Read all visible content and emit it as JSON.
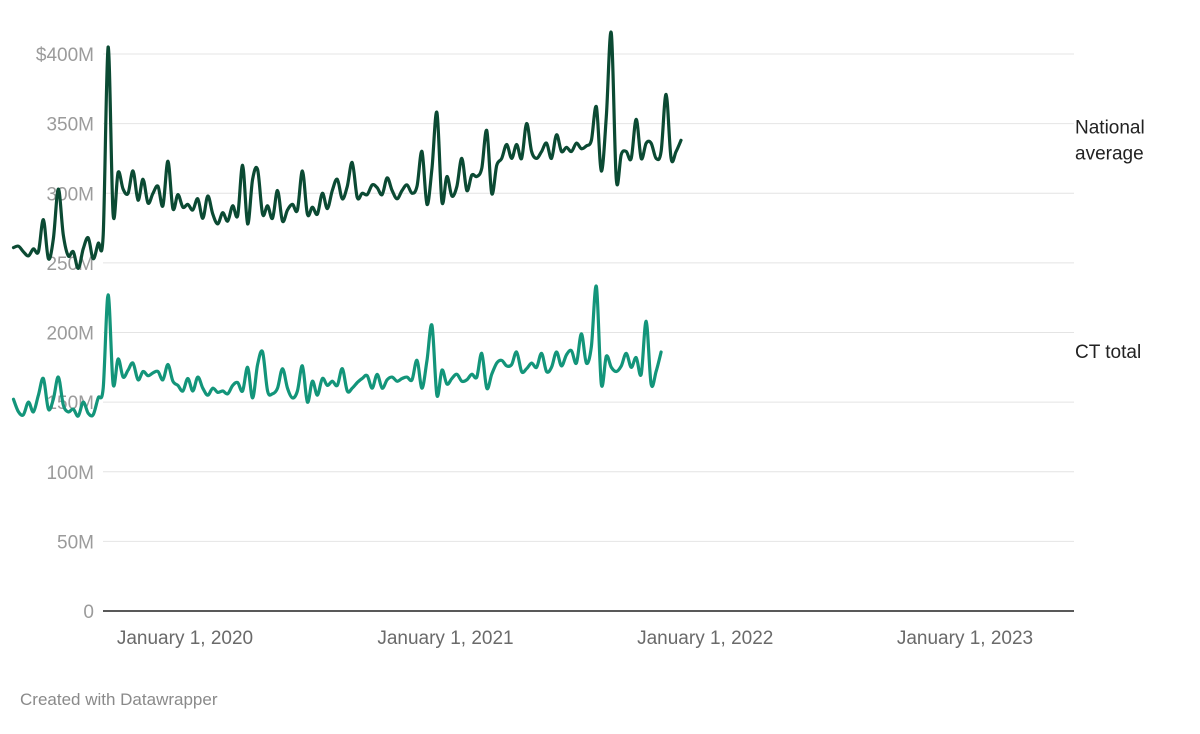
{
  "chart_data": {
    "type": "line",
    "xlabel": "",
    "ylabel": "",
    "ylim": [
      0,
      400
    ],
    "yticks": [
      {
        "value": 0,
        "label": "0"
      },
      {
        "value": 50,
        "label": "50M"
      },
      {
        "value": 100,
        "label": "100M"
      },
      {
        "value": 150,
        "label": "150M"
      },
      {
        "value": 200,
        "label": "200M"
      },
      {
        "value": 250,
        "label": "250M"
      },
      {
        "value": 300,
        "label": "300M"
      },
      {
        "value": 350,
        "label": "350M"
      },
      {
        "value": 400,
        "label": "$400M"
      }
    ],
    "xticks": [
      {
        "date": "2020-01-01",
        "label": "January 1, 2020"
      },
      {
        "date": "2021-01-01",
        "label": "January 1, 2021"
      },
      {
        "date": "2022-01-01",
        "label": "January 1, 2022"
      },
      {
        "date": "2023-01-01",
        "label": "January 1, 2023"
      }
    ],
    "grid": true,
    "legend": "inline-right",
    "series": [
      {
        "name": "National average",
        "color": "#0b4a33",
        "points": [
          [
            "2019-05-05",
            261
          ],
          [
            "2019-05-12",
            262
          ],
          [
            "2019-05-19",
            258
          ],
          [
            "2019-05-26",
            255
          ],
          [
            "2019-06-02",
            260
          ],
          [
            "2019-06-09",
            258
          ],
          [
            "2019-06-16",
            281
          ],
          [
            "2019-06-23",
            253
          ],
          [
            "2019-06-30",
            267
          ],
          [
            "2019-07-07",
            303
          ],
          [
            "2019-07-14",
            270
          ],
          [
            "2019-07-21",
            255
          ],
          [
            "2019-07-28",
            258
          ],
          [
            "2019-08-04",
            246
          ],
          [
            "2019-08-11",
            260
          ],
          [
            "2019-08-18",
            268
          ],
          [
            "2019-08-25",
            253
          ],
          [
            "2019-09-01",
            264
          ],
          [
            "2019-09-08",
            270
          ],
          [
            "2019-09-15",
            405
          ],
          [
            "2019-09-22",
            285
          ],
          [
            "2019-09-29",
            315
          ],
          [
            "2019-10-06",
            303
          ],
          [
            "2019-10-13",
            300
          ],
          [
            "2019-10-20",
            316
          ],
          [
            "2019-10-27",
            295
          ],
          [
            "2019-11-03",
            310
          ],
          [
            "2019-11-10",
            293
          ],
          [
            "2019-11-17",
            300
          ],
          [
            "2019-11-24",
            305
          ],
          [
            "2019-12-01",
            291
          ],
          [
            "2019-12-08",
            323
          ],
          [
            "2019-12-15",
            289
          ],
          [
            "2019-12-22",
            299
          ],
          [
            "2019-12-29",
            290
          ],
          [
            "2020-01-05",
            292
          ],
          [
            "2020-01-12",
            288
          ],
          [
            "2020-01-19",
            296
          ],
          [
            "2020-01-26",
            282
          ],
          [
            "2020-02-02",
            298
          ],
          [
            "2020-02-09",
            285
          ],
          [
            "2020-02-16",
            278
          ],
          [
            "2020-02-23",
            286
          ],
          [
            "2020-03-01",
            280
          ],
          [
            "2020-03-08",
            291
          ],
          [
            "2020-03-15",
            284
          ],
          [
            "2020-03-22",
            320
          ],
          [
            "2020-03-29",
            278
          ],
          [
            "2020-04-05",
            310
          ],
          [
            "2020-04-12",
            317
          ],
          [
            "2020-04-19",
            285
          ],
          [
            "2020-04-26",
            291
          ],
          [
            "2020-05-03",
            282
          ],
          [
            "2020-05-10",
            302
          ],
          [
            "2020-05-17",
            280
          ],
          [
            "2020-05-24",
            288
          ],
          [
            "2020-05-31",
            292
          ],
          [
            "2020-06-07",
            288
          ],
          [
            "2020-06-14",
            316
          ],
          [
            "2020-06-21",
            285
          ],
          [
            "2020-06-28",
            290
          ],
          [
            "2020-07-05",
            285
          ],
          [
            "2020-07-12",
            300
          ],
          [
            "2020-07-19",
            289
          ],
          [
            "2020-07-26",
            302
          ],
          [
            "2020-08-02",
            310
          ],
          [
            "2020-08-09",
            296
          ],
          [
            "2020-08-16",
            305
          ],
          [
            "2020-08-23",
            322
          ],
          [
            "2020-08-30",
            297
          ],
          [
            "2020-09-06",
            300
          ],
          [
            "2020-09-13",
            299
          ],
          [
            "2020-09-20",
            306
          ],
          [
            "2020-09-27",
            304
          ],
          [
            "2020-10-04",
            299
          ],
          [
            "2020-10-11",
            311
          ],
          [
            "2020-10-18",
            302
          ],
          [
            "2020-10-25",
            296
          ],
          [
            "2020-11-01",
            302
          ],
          [
            "2020-11-08",
            306
          ],
          [
            "2020-11-15",
            300
          ],
          [
            "2020-11-22",
            305
          ],
          [
            "2020-11-29",
            330
          ],
          [
            "2020-12-06",
            292
          ],
          [
            "2020-12-13",
            318
          ],
          [
            "2020-12-20",
            358
          ],
          [
            "2020-12-27",
            294
          ],
          [
            "2021-01-03",
            312
          ],
          [
            "2021-01-10",
            298
          ],
          [
            "2021-01-17",
            305
          ],
          [
            "2021-01-24",
            325
          ],
          [
            "2021-01-31",
            302
          ],
          [
            "2021-02-07",
            313
          ],
          [
            "2021-02-14",
            312
          ],
          [
            "2021-02-21",
            318
          ],
          [
            "2021-02-28",
            345
          ],
          [
            "2021-03-07",
            300
          ],
          [
            "2021-03-14",
            320
          ],
          [
            "2021-03-21",
            325
          ],
          [
            "2021-03-28",
            335
          ],
          [
            "2021-04-04",
            325
          ],
          [
            "2021-04-11",
            335
          ],
          [
            "2021-04-18",
            325
          ],
          [
            "2021-04-25",
            350
          ],
          [
            "2021-05-02",
            330
          ],
          [
            "2021-05-09",
            325
          ],
          [
            "2021-05-16",
            330
          ],
          [
            "2021-05-23",
            336
          ],
          [
            "2021-05-30",
            325
          ],
          [
            "2021-06-06",
            342
          ],
          [
            "2021-06-13",
            330
          ],
          [
            "2021-06-20",
            333
          ],
          [
            "2021-06-27",
            330
          ],
          [
            "2021-07-04",
            336
          ],
          [
            "2021-07-11",
            332
          ],
          [
            "2021-07-18",
            334
          ],
          [
            "2021-07-25",
            338
          ],
          [
            "2021-08-01",
            362
          ],
          [
            "2021-08-08",
            316
          ],
          [
            "2021-08-15",
            355
          ],
          [
            "2021-08-22",
            415
          ],
          [
            "2021-08-29",
            310
          ],
          [
            "2021-09-05",
            328
          ],
          [
            "2021-09-12",
            330
          ],
          [
            "2021-09-19",
            325
          ],
          [
            "2021-09-26",
            353
          ],
          [
            "2021-10-03",
            325
          ],
          [
            "2021-10-10",
            336
          ],
          [
            "2021-10-17",
            336
          ],
          [
            "2021-10-24",
            325
          ],
          [
            "2021-10-31",
            330
          ],
          [
            "2021-11-07",
            371
          ],
          [
            "2021-11-14",
            325
          ],
          [
            "2021-11-21",
            330
          ],
          [
            "2021-11-28",
            338
          ]
        ]
      },
      {
        "name": "CT total",
        "color": "#13957a",
        "points": [
          [
            "2019-05-05",
            152
          ],
          [
            "2019-05-12",
            143
          ],
          [
            "2019-05-19",
            141
          ],
          [
            "2019-05-26",
            150
          ],
          [
            "2019-06-02",
            143
          ],
          [
            "2019-06-09",
            155
          ],
          [
            "2019-06-16",
            167
          ],
          [
            "2019-06-23",
            145
          ],
          [
            "2019-06-30",
            152
          ],
          [
            "2019-07-07",
            168
          ],
          [
            "2019-07-14",
            148
          ],
          [
            "2019-07-21",
            143
          ],
          [
            "2019-07-28",
            145
          ],
          [
            "2019-08-04",
            140
          ],
          [
            "2019-08-11",
            150
          ],
          [
            "2019-08-18",
            142
          ],
          [
            "2019-08-25",
            141
          ],
          [
            "2019-09-01",
            153
          ],
          [
            "2019-09-08",
            160
          ],
          [
            "2019-09-15",
            227
          ],
          [
            "2019-09-22",
            163
          ],
          [
            "2019-09-29",
            181
          ],
          [
            "2019-10-06",
            168
          ],
          [
            "2019-10-13",
            173
          ],
          [
            "2019-10-20",
            178
          ],
          [
            "2019-10-27",
            166
          ],
          [
            "2019-11-03",
            172
          ],
          [
            "2019-11-10",
            169
          ],
          [
            "2019-11-17",
            171
          ],
          [
            "2019-11-24",
            172
          ],
          [
            "2019-12-01",
            166
          ],
          [
            "2019-12-08",
            177
          ],
          [
            "2019-12-15",
            165
          ],
          [
            "2019-12-22",
            162
          ],
          [
            "2019-12-29",
            158
          ],
          [
            "2020-01-05",
            167
          ],
          [
            "2020-01-12",
            158
          ],
          [
            "2020-01-19",
            168
          ],
          [
            "2020-01-26",
            160
          ],
          [
            "2020-02-02",
            155
          ],
          [
            "2020-02-09",
            160
          ],
          [
            "2020-02-16",
            157
          ],
          [
            "2020-02-23",
            158
          ],
          [
            "2020-03-01",
            156
          ],
          [
            "2020-03-08",
            162
          ],
          [
            "2020-03-15",
            164
          ],
          [
            "2020-03-22",
            158
          ],
          [
            "2020-03-29",
            175
          ],
          [
            "2020-04-05",
            153
          ],
          [
            "2020-04-12",
            177
          ],
          [
            "2020-04-19",
            186
          ],
          [
            "2020-04-26",
            158
          ],
          [
            "2020-05-03",
            156
          ],
          [
            "2020-05-10",
            160
          ],
          [
            "2020-05-17",
            174
          ],
          [
            "2020-05-24",
            160
          ],
          [
            "2020-05-31",
            153
          ],
          [
            "2020-06-07",
            158
          ],
          [
            "2020-06-14",
            176
          ],
          [
            "2020-06-21",
            150
          ],
          [
            "2020-06-28",
            165
          ],
          [
            "2020-07-05",
            155
          ],
          [
            "2020-07-12",
            167
          ],
          [
            "2020-07-19",
            162
          ],
          [
            "2020-07-26",
            165
          ],
          [
            "2020-08-02",
            162
          ],
          [
            "2020-08-09",
            174
          ],
          [
            "2020-08-16",
            158
          ],
          [
            "2020-08-23",
            160
          ],
          [
            "2020-08-30",
            164
          ],
          [
            "2020-09-06",
            167
          ],
          [
            "2020-09-13",
            169
          ],
          [
            "2020-09-20",
            160
          ],
          [
            "2020-09-27",
            170
          ],
          [
            "2020-10-04",
            160
          ],
          [
            "2020-10-11",
            166
          ],
          [
            "2020-10-18",
            168
          ],
          [
            "2020-10-25",
            165
          ],
          [
            "2020-11-01",
            167
          ],
          [
            "2020-11-08",
            168
          ],
          [
            "2020-11-15",
            166
          ],
          [
            "2020-11-22",
            180
          ],
          [
            "2020-11-29",
            160
          ],
          [
            "2020-12-06",
            180
          ],
          [
            "2020-12-13",
            205
          ],
          [
            "2020-12-20",
            155
          ],
          [
            "2020-12-27",
            173
          ],
          [
            "2021-01-03",
            163
          ],
          [
            "2021-01-10",
            167
          ],
          [
            "2021-01-17",
            170
          ],
          [
            "2021-01-24",
            165
          ],
          [
            "2021-01-31",
            166
          ],
          [
            "2021-02-07",
            170
          ],
          [
            "2021-02-14",
            168
          ],
          [
            "2021-02-21",
            185
          ],
          [
            "2021-02-28",
            160
          ],
          [
            "2021-03-07",
            170
          ],
          [
            "2021-03-14",
            178
          ],
          [
            "2021-03-21",
            180
          ],
          [
            "2021-03-28",
            176
          ],
          [
            "2021-04-04",
            177
          ],
          [
            "2021-04-11",
            186
          ],
          [
            "2021-04-18",
            172
          ],
          [
            "2021-04-25",
            174
          ],
          [
            "2021-05-02",
            178
          ],
          [
            "2021-05-09",
            175
          ],
          [
            "2021-05-16",
            185
          ],
          [
            "2021-05-23",
            172
          ],
          [
            "2021-05-30",
            175
          ],
          [
            "2021-06-06",
            186
          ],
          [
            "2021-06-13",
            176
          ],
          [
            "2021-06-20",
            184
          ],
          [
            "2021-06-27",
            187
          ],
          [
            "2021-07-04",
            178
          ],
          [
            "2021-07-11",
            199
          ],
          [
            "2021-07-18",
            178
          ],
          [
            "2021-07-25",
            190
          ],
          [
            "2021-08-01",
            233
          ],
          [
            "2021-08-08",
            163
          ],
          [
            "2021-08-15",
            183
          ],
          [
            "2021-08-22",
            175
          ],
          [
            "2021-08-29",
            172
          ],
          [
            "2021-09-05",
            176
          ],
          [
            "2021-09-12",
            185
          ],
          [
            "2021-09-19",
            175
          ],
          [
            "2021-09-26",
            182
          ],
          [
            "2021-10-03",
            170
          ],
          [
            "2021-10-10",
            208
          ],
          [
            "2021-10-17",
            163
          ],
          [
            "2021-10-24",
            172
          ],
          [
            "2021-10-31",
            186
          ]
        ]
      }
    ]
  },
  "footer": {
    "credit": "Created with Datawrapper"
  }
}
